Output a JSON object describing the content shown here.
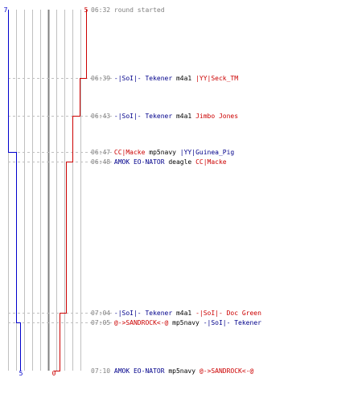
{
  "score": {
    "blue_start": "7",
    "red_start": "5",
    "blue_end": "5",
    "red_end": "0"
  },
  "colors": {
    "blue_team": "#0000cc",
    "red_team": "#cc0000",
    "grid": "#c0c0c0",
    "time": "#808080"
  },
  "events": [
    {
      "time": "06:32",
      "parts": [
        {
          "text": "round started",
          "color": "time"
        }
      ]
    },
    {
      "time": "06:39",
      "parts": [
        {
          "text": "-|SoI|- Tekener",
          "color": "blue"
        },
        {
          "text": " m4a1 ",
          "color": "black"
        },
        {
          "text": "|YY|Seck_TM",
          "color": "red"
        }
      ]
    },
    {
      "time": "06:43",
      "parts": [
        {
          "text": "-|SoI|- Tekener",
          "color": "blue"
        },
        {
          "text": " m4a1 ",
          "color": "black"
        },
        {
          "text": "Jimbo Jones",
          "color": "red"
        }
      ]
    },
    {
      "time": "06:47",
      "parts": [
        {
          "text": "CC|Macke",
          "color": "red"
        },
        {
          "text": " mp5navy ",
          "color": "black"
        },
        {
          "text": "|YY|Guinea_Pig",
          "color": "blue"
        }
      ]
    },
    {
      "time": "06:48",
      "parts": [
        {
          "text": "AMOK EO-NATOR",
          "color": "blue"
        },
        {
          "text": " deagle ",
          "color": "black"
        },
        {
          "text": "CC|Macke",
          "color": "red"
        }
      ]
    },
    {
      "time": "07:04",
      "parts": [
        {
          "text": "-|SoI|- Tekener",
          "color": "blue"
        },
        {
          "text": " m4a1 ",
          "color": "black"
        },
        {
          "text": "-|SoI|- Doc Green",
          "color": "red"
        }
      ]
    },
    {
      "time": "07:05",
      "parts": [
        {
          "text": "@->SANDROCK<-@",
          "color": "red"
        },
        {
          "text": " mp5navy ",
          "color": "black"
        },
        {
          "text": "-|SoI|- Tekener",
          "color": "blue"
        }
      ]
    },
    {
      "time": "07:10",
      "parts": [
        {
          "text": "AMOK EO-NATOR",
          "color": "blue"
        },
        {
          "text": " mp5navy ",
          "color": "black"
        },
        {
          "text": "@->SANDROCK<-@",
          "color": "red"
        }
      ]
    }
  ],
  "timeline": {
    "blue_steps": [
      {
        "event": 3,
        "value": 6
      },
      {
        "event": 6,
        "value": 5
      }
    ],
    "red_steps": [
      {
        "event": 1,
        "value": 4
      },
      {
        "event": 2,
        "value": 3
      },
      {
        "event": 4,
        "value": 2
      },
      {
        "event": 5,
        "value": 1
      },
      {
        "event": 7,
        "value": 0
      }
    ]
  }
}
